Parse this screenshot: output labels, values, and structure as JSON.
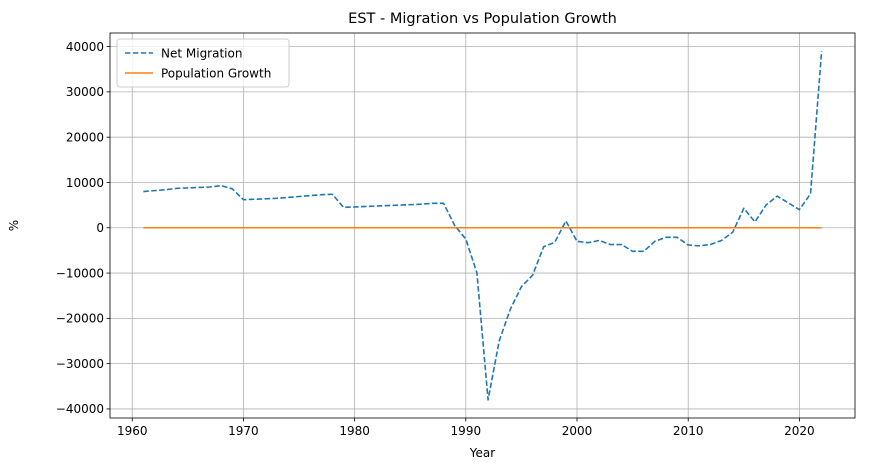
{
  "chart_data": {
    "type": "line",
    "title": "EST - Migration vs Population Growth",
    "xlabel": "Year",
    "ylabel": "%",
    "xlim": [
      1958,
      2025
    ],
    "ylim": [
      -42000,
      43000
    ],
    "xticks": [
      1960,
      1970,
      1980,
      1990,
      2000,
      2010,
      2020
    ],
    "yticks": [
      -40000,
      -30000,
      -20000,
      -10000,
      0,
      10000,
      20000,
      30000,
      40000
    ],
    "xtick_labels": [
      "1960",
      "1970",
      "1980",
      "1990",
      "2000",
      "2010",
      "2020"
    ],
    "ytick_labels": [
      "−40000",
      "−30000",
      "−20000",
      "−10000",
      "0",
      "10000",
      "20000",
      "30000",
      "40000"
    ],
    "grid": true,
    "legend_position": "top-left",
    "series": [
      {
        "name": "Net Migration",
        "color": "#1f77b4",
        "style": "dashed",
        "x": [
          1961,
          1962,
          1963,
          1964,
          1965,
          1966,
          1967,
          1968,
          1969,
          1970,
          1971,
          1972,
          1973,
          1974,
          1975,
          1976,
          1977,
          1978,
          1979,
          1980,
          1981,
          1982,
          1983,
          1984,
          1985,
          1986,
          1987,
          1988,
          1989,
          1990,
          1991,
          1992,
          1993,
          1994,
          1995,
          1996,
          1997,
          1998,
          1999,
          2000,
          2001,
          2002,
          2003,
          2004,
          2005,
          2006,
          2007,
          2008,
          2009,
          2010,
          2011,
          2012,
          2013,
          2014,
          2015,
          2016,
          2017,
          2018,
          2019,
          2020,
          2021,
          2022
        ],
        "y": [
          8000,
          8200,
          8400,
          8700,
          8800,
          8900,
          9000,
          9300,
          8600,
          6200,
          6300,
          6400,
          6500,
          6700,
          6900,
          7100,
          7300,
          7400,
          4500,
          4600,
          4700,
          4800,
          4900,
          5000,
          5100,
          5200,
          5400,
          5400,
          500,
          -2500,
          -10000,
          -38000,
          -25000,
          -18000,
          -13000,
          -10500,
          -4200,
          -3200,
          1500,
          -3000,
          -3300,
          -2800,
          -3700,
          -3700,
          -5200,
          -5200,
          -3000,
          -2100,
          -2100,
          -3800,
          -4000,
          -3700,
          -2800,
          -1000,
          4300,
          1300,
          5000,
          7000,
          5500,
          4000,
          7500,
          39000
        ]
      },
      {
        "name": "Population Growth",
        "color": "#ff7f0e",
        "style": "solid",
        "x": [
          1961,
          1970,
          1980,
          1990,
          2000,
          2010,
          2020,
          2022
        ],
        "y": [
          0,
          0,
          0,
          0,
          0,
          0,
          0,
          0
        ]
      }
    ]
  }
}
